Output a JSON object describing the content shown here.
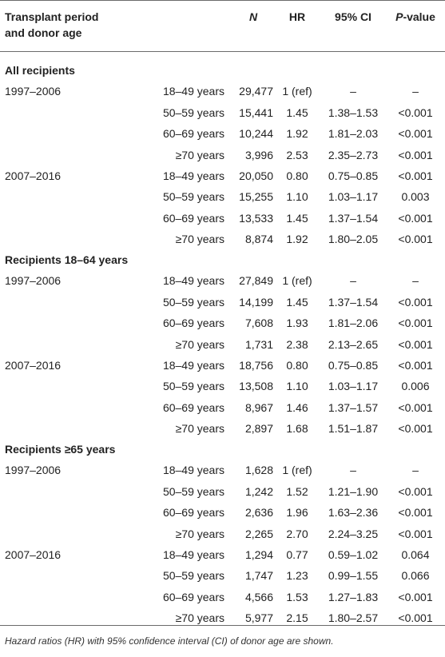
{
  "headers": {
    "period_line1": "Transplant period",
    "period_line2": "and donor age",
    "n": "N",
    "hr": "HR",
    "ci": "95% CI",
    "p_italic": "P",
    "p_rest": "-value"
  },
  "groups": [
    {
      "title": "All recipients",
      "periods": [
        {
          "label": "1997–2006",
          "rows": [
            {
              "age": "18–49 years",
              "n": "29,477",
              "hr": "1 (ref)",
              "ci": "–",
              "p": "–"
            },
            {
              "age": "50–59 years",
              "n": "15,441",
              "hr": "1.45",
              "ci": "1.38–1.53",
              "p": "<0.001"
            },
            {
              "age": "60–69 years",
              "n": "10,244",
              "hr": "1.92",
              "ci": "1.81–2.03",
              "p": "<0.001"
            },
            {
              "age": "≥70 years",
              "n": "3,996",
              "hr": "2.53",
              "ci": "2.35–2.73",
              "p": "<0.001"
            }
          ]
        },
        {
          "label": "2007–2016",
          "rows": [
            {
              "age": "18–49 years",
              "n": "20,050",
              "hr": "0.80",
              "ci": "0.75–0.85",
              "p": "<0.001"
            },
            {
              "age": "50–59 years",
              "n": "15,255",
              "hr": "1.10",
              "ci": "1.03–1.17",
              "p": "0.003"
            },
            {
              "age": "60–69 years",
              "n": "13,533",
              "hr": "1.45",
              "ci": "1.37–1.54",
              "p": "<0.001"
            },
            {
              "age": "≥70 years",
              "n": "8,874",
              "hr": "1.92",
              "ci": "1.80–2.05",
              "p": "<0.001"
            }
          ]
        }
      ]
    },
    {
      "title": "Recipients 18–64 years",
      "periods": [
        {
          "label": "1997–2006",
          "rows": [
            {
              "age": "18–49 years",
              "n": "27,849",
              "hr": "1 (ref)",
              "ci": "–",
              "p": "–"
            },
            {
              "age": "50–59 years",
              "n": "14,199",
              "hr": "1.45",
              "ci": "1.37–1.54",
              "p": "<0.001"
            },
            {
              "age": "60–69 years",
              "n": "7,608",
              "hr": "1.93",
              "ci": "1.81–2.06",
              "p": "<0.001"
            },
            {
              "age": "≥70 years",
              "n": "1,731",
              "hr": "2.38",
              "ci": "2.13–2.65",
              "p": "<0.001"
            }
          ]
        },
        {
          "label": "2007–2016",
          "rows": [
            {
              "age": "18–49 years",
              "n": "18,756",
              "hr": "0.80",
              "ci": "0.75–0.85",
              "p": "<0.001"
            },
            {
              "age": "50–59 years",
              "n": "13,508",
              "hr": "1.10",
              "ci": "1.03–1.17",
              "p": "0.006"
            },
            {
              "age": "60–69 years",
              "n": "8,967",
              "hr": "1.46",
              "ci": "1.37–1.57",
              "p": "<0.001"
            },
            {
              "age": "≥70 years",
              "n": "2,897",
              "hr": "1.68",
              "ci": "1.51–1.87",
              "p": "<0.001"
            }
          ]
        }
      ]
    },
    {
      "title": "Recipients ≥65 years",
      "periods": [
        {
          "label": "1997–2006",
          "rows": [
            {
              "age": "18–49 years",
              "n": "1,628",
              "hr": "1 (ref)",
              "ci": "–",
              "p": "–"
            },
            {
              "age": "50–59 years",
              "n": "1,242",
              "hr": "1.52",
              "ci": "1.21–1.90",
              "p": "<0.001"
            },
            {
              "age": "60–69 years",
              "n": "2,636",
              "hr": "1.96",
              "ci": "1.63–2.36",
              "p": "<0.001"
            },
            {
              "age": "≥70 years",
              "n": "2,265",
              "hr": "2.70",
              "ci": "2.24–3.25",
              "p": "<0.001"
            }
          ]
        },
        {
          "label": "2007–2016",
          "rows": [
            {
              "age": "18–49 years",
              "n": "1,294",
              "hr": "0.77",
              "ci": "0.59–1.02",
              "p": "0.064"
            },
            {
              "age": "50–59 years",
              "n": "1,747",
              "hr": "1.23",
              "ci": "0.99–1.55",
              "p": "0.066"
            },
            {
              "age": "60–69 years",
              "n": "4,566",
              "hr": "1.53",
              "ci": "1.27–1.83",
              "p": "<0.001"
            },
            {
              "age": "≥70 years",
              "n": "5,977",
              "hr": "2.15",
              "ci": "1.80–2.57",
              "p": "<0.001"
            }
          ]
        }
      ]
    }
  ],
  "footnote": "Hazard ratios (HR) with 95% confidence interval (CI) of donor age are shown."
}
